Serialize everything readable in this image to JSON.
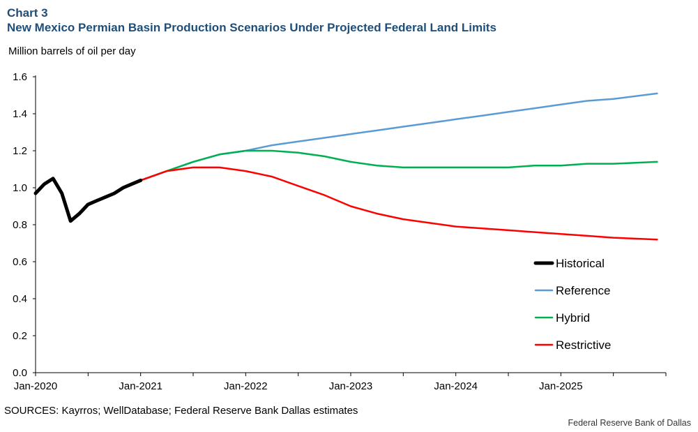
{
  "header": {
    "chart_number": "Chart 3",
    "title": "New Mexico Permian Basin Production Scenarios Under Projected Federal Land Limits"
  },
  "footer": {
    "sources": "SOURCES: Kayrros; WellDatabase; Federal Reserve Bank Dallas estimates",
    "credit": "Federal Reserve Bank of Dallas"
  },
  "colors": {
    "historical": "#000000",
    "reference": "#5b9bd5",
    "hybrid": "#00b050",
    "restrictive": "#ff0000",
    "title": "#1f4e79"
  },
  "chart_data": {
    "type": "line",
    "title": "New Mexico Permian Basin Production Scenarios Under Projected Federal Land Limits",
    "ylabel": "Million barrels of oil per day",
    "xlabel": "",
    "ylim": [
      0,
      1.6
    ],
    "yticks": [
      "0.0",
      "0.2",
      "0.4",
      "0.6",
      "0.8",
      "1.0",
      "1.2",
      "1.4",
      "1.6"
    ],
    "xlim": [
      "2020-01",
      "2025-12"
    ],
    "xticks": [
      "Jan-2020",
      "Jan-2021",
      "Jan-2022",
      "Jan-2023",
      "Jan-2024",
      "Jan-2025"
    ],
    "grid": false,
    "legend_position": "bottom-right",
    "series": [
      {
        "name": "Historical",
        "color": "#000000",
        "points": [
          [
            "2020-01",
            0.97
          ],
          [
            "2020-02",
            1.02
          ],
          [
            "2020-03",
            1.05
          ],
          [
            "2020-04",
            0.97
          ],
          [
            "2020-05",
            0.82
          ],
          [
            "2020-06",
            0.86
          ],
          [
            "2020-07",
            0.91
          ],
          [
            "2020-08",
            0.93
          ],
          [
            "2020-09",
            0.95
          ],
          [
            "2020-10",
            0.97
          ],
          [
            "2020-11",
            1.0
          ],
          [
            "2020-12",
            1.02
          ],
          [
            "2021-01",
            1.04
          ]
        ]
      },
      {
        "name": "Reference",
        "color": "#5b9bd5",
        "points": [
          [
            "2021-01",
            1.04
          ],
          [
            "2021-04",
            1.09
          ],
          [
            "2021-07",
            1.14
          ],
          [
            "2021-10",
            1.18
          ],
          [
            "2022-01",
            1.2
          ],
          [
            "2022-04",
            1.23
          ],
          [
            "2022-07",
            1.25
          ],
          [
            "2022-10",
            1.27
          ],
          [
            "2023-01",
            1.29
          ],
          [
            "2023-04",
            1.31
          ],
          [
            "2023-07",
            1.33
          ],
          [
            "2023-10",
            1.35
          ],
          [
            "2024-01",
            1.37
          ],
          [
            "2024-04",
            1.39
          ],
          [
            "2024-07",
            1.41
          ],
          [
            "2024-10",
            1.43
          ],
          [
            "2025-01",
            1.45
          ],
          [
            "2025-04",
            1.47
          ],
          [
            "2025-07",
            1.48
          ],
          [
            "2025-12",
            1.51
          ]
        ]
      },
      {
        "name": "Hybrid",
        "color": "#00b050",
        "points": [
          [
            "2021-01",
            1.04
          ],
          [
            "2021-04",
            1.09
          ],
          [
            "2021-07",
            1.14
          ],
          [
            "2021-10",
            1.18
          ],
          [
            "2022-01",
            1.2
          ],
          [
            "2022-04",
            1.2
          ],
          [
            "2022-07",
            1.19
          ],
          [
            "2022-10",
            1.17
          ],
          [
            "2023-01",
            1.14
          ],
          [
            "2023-04",
            1.12
          ],
          [
            "2023-07",
            1.11
          ],
          [
            "2023-10",
            1.11
          ],
          [
            "2024-01",
            1.11
          ],
          [
            "2024-04",
            1.11
          ],
          [
            "2024-07",
            1.11
          ],
          [
            "2024-10",
            1.12
          ],
          [
            "2025-01",
            1.12
          ],
          [
            "2025-04",
            1.13
          ],
          [
            "2025-07",
            1.13
          ],
          [
            "2025-12",
            1.14
          ]
        ]
      },
      {
        "name": "Restrictive",
        "color": "#ff0000",
        "points": [
          [
            "2021-01",
            1.04
          ],
          [
            "2021-04",
            1.09
          ],
          [
            "2021-07",
            1.11
          ],
          [
            "2021-10",
            1.11
          ],
          [
            "2022-01",
            1.09
          ],
          [
            "2022-04",
            1.06
          ],
          [
            "2022-07",
            1.01
          ],
          [
            "2022-10",
            0.96
          ],
          [
            "2023-01",
            0.9
          ],
          [
            "2023-04",
            0.86
          ],
          [
            "2023-07",
            0.83
          ],
          [
            "2023-10",
            0.81
          ],
          [
            "2024-01",
            0.79
          ],
          [
            "2024-04",
            0.78
          ],
          [
            "2024-07",
            0.77
          ],
          [
            "2024-10",
            0.76
          ],
          [
            "2025-01",
            0.75
          ],
          [
            "2025-04",
            0.74
          ],
          [
            "2025-07",
            0.73
          ],
          [
            "2025-12",
            0.72
          ]
        ]
      }
    ]
  }
}
